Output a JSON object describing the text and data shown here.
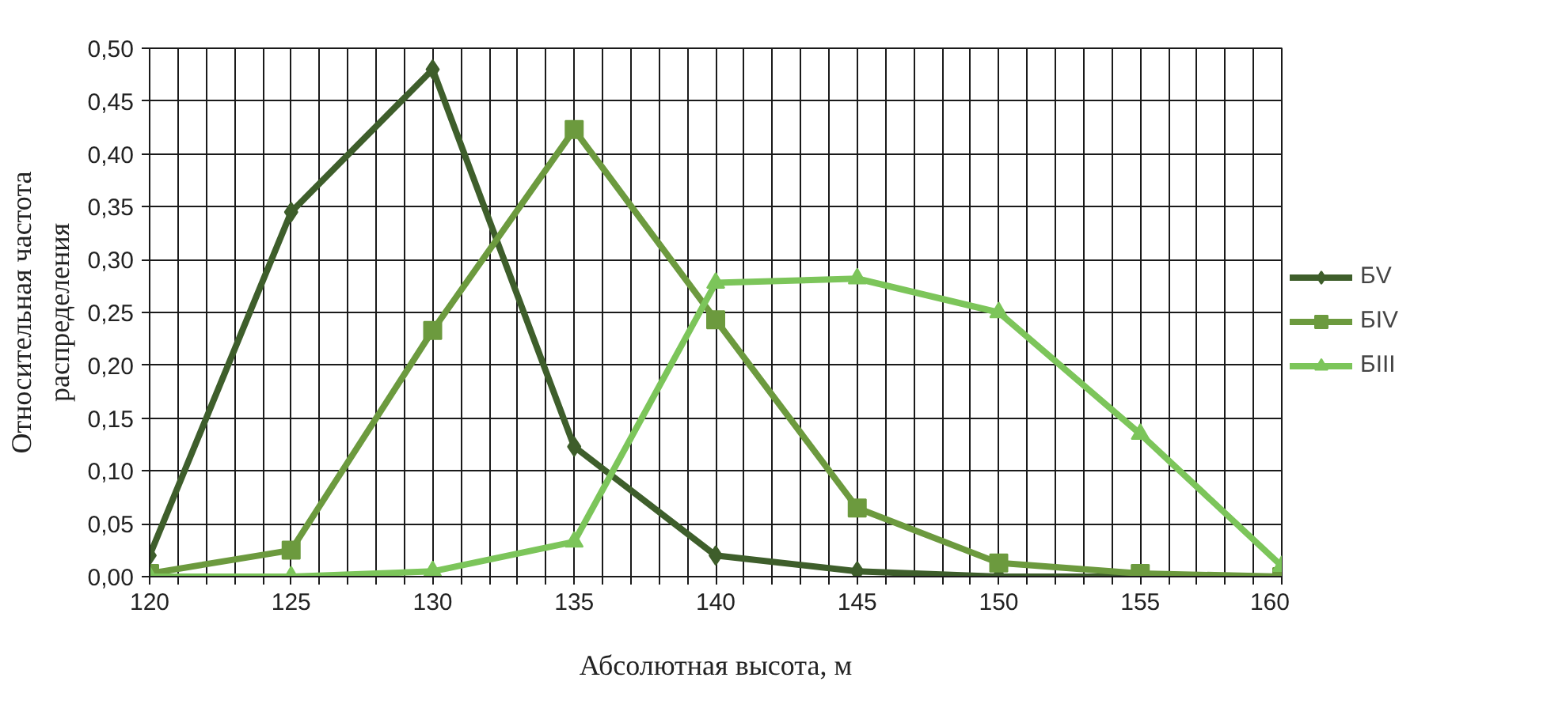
{
  "chart_data": {
    "type": "line",
    "xlabel": "Абсолютная высота, м",
    "ylabel": "Относительная частота\nраспределения",
    "x": [
      120,
      125,
      130,
      135,
      140,
      145,
      150,
      155,
      160
    ],
    "series": [
      {
        "name": "БV",
        "color": "#3e5e2b",
        "marker": "diamond",
        "values": [
          0.02,
          0.345,
          0.48,
          0.123,
          0.02,
          0.005,
          0.0,
          0.0,
          0.0
        ]
      },
      {
        "name": "БIV",
        "color": "#6c9a3e",
        "marker": "square",
        "values": [
          0.003,
          0.025,
          0.233,
          0.423,
          0.243,
          0.065,
          0.013,
          0.003,
          0.0
        ]
      },
      {
        "name": "БIII",
        "color": "#7cc55a",
        "marker": "triangle",
        "values": [
          0.0,
          0.0,
          0.005,
          0.033,
          0.278,
          0.282,
          0.25,
          0.135,
          0.01
        ]
      }
    ],
    "xlim": [
      120,
      160
    ],
    "xticks": [
      120,
      {
        "value": 121,
        "label": null
      },
      {
        "value": 122,
        "label": null
      },
      {
        "value": 123,
        "label": null
      },
      {
        "value": 124,
        "label": null
      },
      125,
      {
        "value": 126,
        "label": null
      },
      {
        "value": 127,
        "label": null
      },
      {
        "value": 128,
        "label": null
      },
      {
        "value": 129,
        "label": null
      },
      130,
      {
        "value": 131,
        "label": null
      },
      {
        "value": 132,
        "label": null
      },
      {
        "value": 133,
        "label": null
      },
      {
        "value": 134,
        "label": null
      },
      135,
      {
        "value": 136,
        "label": null
      },
      {
        "value": 137,
        "label": null
      },
      {
        "value": 138,
        "label": null
      },
      {
        "value": 139,
        "label": null
      },
      140,
      {
        "value": 141,
        "label": null
      },
      {
        "value": 142,
        "label": null
      },
      {
        "value": 143,
        "label": null
      },
      {
        "value": 144,
        "label": null
      },
      145,
      {
        "value": 146,
        "label": null
      },
      {
        "value": 147,
        "label": null
      },
      {
        "value": 148,
        "label": null
      },
      {
        "value": 149,
        "label": null
      },
      150,
      {
        "value": 151,
        "label": null
      },
      {
        "value": 152,
        "label": null
      },
      {
        "value": 153,
        "label": null
      },
      {
        "value": 154,
        "label": null
      },
      155,
      {
        "value": 156,
        "label": null
      },
      {
        "value": 157,
        "label": null
      },
      {
        "value": 158,
        "label": null
      },
      {
        "value": 159,
        "label": null
      },
      160
    ],
    "ylim": [
      0,
      0.5
    ],
    "yticks": [
      {
        "value": 0,
        "label": "0,00"
      },
      {
        "value": 0.05,
        "label": "0,05"
      },
      {
        "value": 0.1,
        "label": "0,10"
      },
      {
        "value": 0.15,
        "label": "0,15"
      },
      {
        "value": 0.2,
        "label": "0,20"
      },
      {
        "value": 0.25,
        "label": "0,25"
      },
      {
        "value": 0.3,
        "label": "0,30"
      },
      {
        "value": 0.35,
        "label": "0,35"
      },
      {
        "value": 0.4,
        "label": "0,40"
      },
      {
        "value": 0.45,
        "label": "0,45"
      },
      {
        "value": 0.5,
        "label": "0,50"
      }
    ],
    "grid": true,
    "legend": "right",
    "line_style": "solid"
  }
}
